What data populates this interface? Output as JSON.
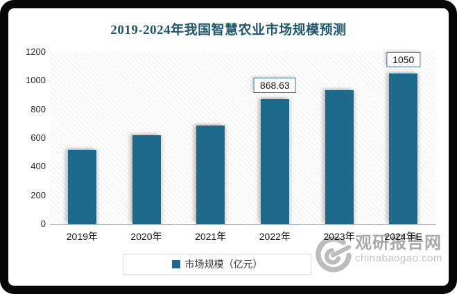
{
  "title": "2019-2024年我国智慧农业市场规模预测",
  "chart_data": {
    "type": "bar",
    "title": "2019-2024年我国智慧农业市场规模预测",
    "categories": [
      "2019年",
      "2020年",
      "2021年",
      "2022年",
      "2023年",
      "2024年E"
    ],
    "series": [
      {
        "name": "市场规模（亿元）",
        "values": [
          520,
          617,
          685,
          868.63,
          935,
          1050
        ]
      }
    ],
    "shown_data_labels": [
      {
        "index": 3,
        "text": "868.63"
      },
      {
        "index": 5,
        "text": "1050"
      }
    ],
    "xlabel": "",
    "ylabel": "",
    "ylim": [
      0,
      1200
    ],
    "yticks": [
      "0",
      "200",
      "400",
      "600",
      "800",
      "1000",
      "1200"
    ],
    "grid": false,
    "legend_position": "bottom",
    "bar_color": "#1E6A8C",
    "plot_background": "diagonal-hatch"
  },
  "legend": {
    "label": "市场规模（亿元）"
  },
  "watermark": {
    "name": "观研报告网",
    "domain": "chinabaogao.com"
  }
}
